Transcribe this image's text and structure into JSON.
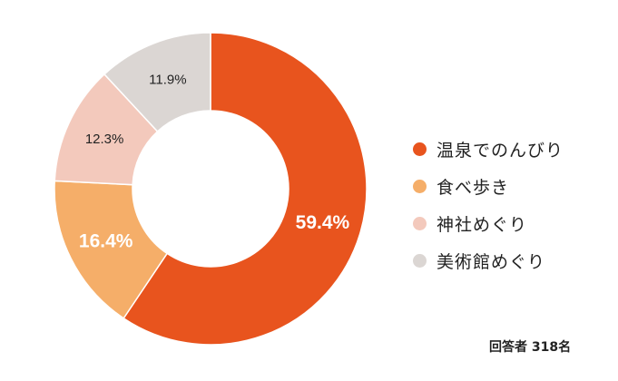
{
  "chart_data": {
    "type": "pie",
    "categories": [
      "温泉でのんびり",
      "食べ歩き",
      "神社めぐり",
      "美術館めぐり"
    ],
    "values": [
      59.4,
      16.4,
      12.3,
      11.9
    ],
    "value_labels": [
      "59.4%",
      "16.4%",
      "12.3%",
      "11.9%"
    ],
    "colors": [
      "#E8541E",
      "#F5AE69",
      "#F3C9BC",
      "#DBD6D3"
    ],
    "label_colors": [
      "#ffffff",
      "#ffffff",
      "#222222",
      "#222222"
    ],
    "donut": true,
    "legend_position": "right",
    "start_angle": "top, clockwise"
  },
  "footer": {
    "respondents": "回答者 318名"
  }
}
